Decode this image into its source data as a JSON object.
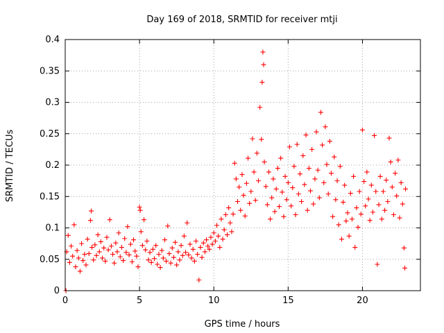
{
  "chart_data": {
    "type": "scatter",
    "title": "Day 169 of 2018, SRMTID for receiver mtji",
    "xlabel": "GPS time / hours",
    "ylabel": "SRMTID / TECUs",
    "xlim": [
      0,
      23.9
    ],
    "ylim": [
      0,
      0.4
    ],
    "x_ticks": [
      0,
      5,
      10,
      15,
      20
    ],
    "x_tick_labels": [
      "0",
      "5",
      "10",
      "15",
      "20"
    ],
    "y_ticks": [
      0,
      0.05,
      0.1,
      0.15,
      0.2,
      0.25,
      0.3,
      0.35,
      0.4
    ],
    "y_tick_labels": [
      "0",
      "0.05",
      "0.1",
      "0.15",
      "0.2",
      "0.25",
      "0.3",
      "0.35",
      "0.4"
    ],
    "grid": true,
    "marker": "+",
    "color": "#ff0000",
    "series": [
      {
        "name": "SRMTID",
        "points": [
          [
            0.05,
            0.0
          ],
          [
            0.1,
            0.062
          ],
          [
            0.2,
            0.088
          ],
          [
            0.3,
            0.045
          ],
          [
            0.4,
            0.071
          ],
          [
            0.5,
            0.055
          ],
          [
            0.6,
            0.105
          ],
          [
            0.7,
            0.038
          ],
          [
            0.8,
            0.064
          ],
          [
            0.9,
            0.052
          ],
          [
            1.0,
            0.031
          ],
          [
            1.1,
            0.075
          ],
          [
            1.2,
            0.048
          ],
          [
            1.3,
            0.058
          ],
          [
            1.4,
            0.041
          ],
          [
            1.5,
            0.082
          ],
          [
            1.6,
            0.059
          ],
          [
            1.7,
            0.112
          ],
          [
            1.75,
            0.127
          ],
          [
            1.8,
            0.069
          ],
          [
            1.9,
            0.049
          ],
          [
            2.0,
            0.073
          ],
          [
            2.1,
            0.056
          ],
          [
            2.2,
            0.089
          ],
          [
            2.3,
            0.062
          ],
          [
            2.4,
            0.078
          ],
          [
            2.5,
            0.052
          ],
          [
            2.6,
            0.068
          ],
          [
            2.7,
            0.047
          ],
          [
            2.8,
            0.085
          ],
          [
            2.9,
            0.065
          ],
          [
            3.0,
            0.113
          ],
          [
            3.1,
            0.071
          ],
          [
            3.2,
            0.058
          ],
          [
            3.3,
            0.044
          ],
          [
            3.4,
            0.076
          ],
          [
            3.5,
            0.062
          ],
          [
            3.6,
            0.092
          ],
          [
            3.7,
            0.054
          ],
          [
            3.8,
            0.069
          ],
          [
            3.9,
            0.048
          ],
          [
            4.0,
            0.083
          ],
          [
            4.1,
            0.061
          ],
          [
            4.2,
            0.102
          ],
          [
            4.3,
            0.057
          ],
          [
            4.4,
            0.074
          ],
          [
            4.5,
            0.046
          ],
          [
            4.6,
            0.081
          ],
          [
            4.7,
            0.063
          ],
          [
            4.8,
            0.055
          ],
          [
            4.9,
            0.038
          ],
          [
            5.0,
            0.133
          ],
          [
            5.05,
            0.128
          ],
          [
            5.1,
            0.094
          ],
          [
            5.2,
            0.072
          ],
          [
            5.3,
            0.113
          ],
          [
            5.4,
            0.065
          ],
          [
            5.5,
            0.079
          ],
          [
            5.6,
            0.049
          ],
          [
            5.7,
            0.061
          ],
          [
            5.8,
            0.045
          ],
          [
            5.9,
            0.066
          ],
          [
            6.0,
            0.051
          ],
          [
            6.1,
            0.072
          ],
          [
            6.2,
            0.042
          ],
          [
            6.3,
            0.058
          ],
          [
            6.4,
            0.037
          ],
          [
            6.5,
            0.064
          ],
          [
            6.6,
            0.052
          ],
          [
            6.7,
            0.081
          ],
          [
            6.8,
            0.047
          ],
          [
            6.9,
            0.103
          ],
          [
            7.0,
            0.059
          ],
          [
            7.1,
            0.044
          ],
          [
            7.2,
            0.068
          ],
          [
            7.3,
            0.053
          ],
          [
            7.4,
            0.077
          ],
          [
            7.5,
            0.041
          ],
          [
            7.6,
            0.062
          ],
          [
            7.7,
            0.049
          ],
          [
            7.8,
            0.072
          ],
          [
            7.9,
            0.056
          ],
          [
            8.0,
            0.087
          ],
          [
            8.1,
            0.061
          ],
          [
            8.2,
            0.108
          ],
          [
            8.3,
            0.057
          ],
          [
            8.4,
            0.074
          ],
          [
            8.5,
            0.052
          ],
          [
            8.6,
            0.066
          ],
          [
            8.7,
            0.047
          ],
          [
            8.8,
            0.079
          ],
          [
            8.9,
            0.058
          ],
          [
            9.0,
            0.017
          ],
          [
            9.1,
            0.069
          ],
          [
            9.2,
            0.053
          ],
          [
            9.3,
            0.076
          ],
          [
            9.4,
            0.062
          ],
          [
            9.5,
            0.081
          ],
          [
            9.6,
            0.071
          ],
          [
            9.7,
            0.066
          ],
          [
            9.8,
            0.085
          ],
          [
            9.9,
            0.074
          ],
          [
            10.0,
            0.092
          ],
          [
            10.1,
            0.079
          ],
          [
            10.2,
            0.104
          ],
          [
            10.3,
            0.087
          ],
          [
            10.4,
            0.069
          ],
          [
            10.5,
            0.114
          ],
          [
            10.6,
            0.082
          ],
          [
            10.7,
            0.097
          ],
          [
            10.8,
            0.121
          ],
          [
            10.9,
            0.089
          ],
          [
            11.0,
            0.132
          ],
          [
            11.1,
            0.108
          ],
          [
            11.2,
            0.094
          ],
          [
            11.3,
            0.122
          ],
          [
            11.4,
            0.203
          ],
          [
            11.5,
            0.178
          ],
          [
            11.6,
            0.142
          ],
          [
            11.7,
            0.165
          ],
          [
            11.8,
            0.128
          ],
          [
            11.9,
            0.185
          ],
          [
            12.0,
            0.152
          ],
          [
            12.1,
            0.119
          ],
          [
            12.2,
            0.171
          ],
          [
            12.3,
            0.211
          ],
          [
            12.4,
            0.139
          ],
          [
            12.5,
            0.158
          ],
          [
            12.6,
            0.242
          ],
          [
            12.7,
            0.189
          ],
          [
            12.8,
            0.144
          ],
          [
            12.9,
            0.219
          ],
          [
            13.0,
            0.175
          ],
          [
            13.1,
            0.292
          ],
          [
            13.2,
            0.241
          ],
          [
            13.25,
            0.332
          ],
          [
            13.3,
            0.38
          ],
          [
            13.35,
            0.36
          ],
          [
            13.4,
            0.205
          ],
          [
            13.5,
            0.166
          ],
          [
            13.6,
            0.137
          ],
          [
            13.7,
            0.189
          ],
          [
            13.8,
            0.114
          ],
          [
            13.9,
            0.148
          ],
          [
            14.0,
            0.178
          ],
          [
            14.1,
            0.126
          ],
          [
            14.2,
            0.162
          ],
          [
            14.3,
            0.195
          ],
          [
            14.4,
            0.134
          ],
          [
            14.5,
            0.211
          ],
          [
            14.6,
            0.157
          ],
          [
            14.7,
            0.118
          ],
          [
            14.8,
            0.182
          ],
          [
            14.9,
            0.145
          ],
          [
            15.0,
            0.172
          ],
          [
            15.1,
            0.229
          ],
          [
            15.2,
            0.135
          ],
          [
            15.3,
            0.164
          ],
          [
            15.4,
            0.198
          ],
          [
            15.5,
            0.121
          ],
          [
            15.6,
            0.233
          ],
          [
            15.7,
            0.154
          ],
          [
            15.8,
            0.186
          ],
          [
            15.9,
            0.142
          ],
          [
            16.0,
            0.215
          ],
          [
            16.1,
            0.169
          ],
          [
            16.2,
            0.248
          ],
          [
            16.3,
            0.128
          ],
          [
            16.4,
            0.195
          ],
          [
            16.5,
            0.159
          ],
          [
            16.6,
            0.225
          ],
          [
            16.7,
            0.138
          ],
          [
            16.8,
            0.178
          ],
          [
            16.9,
            0.253
          ],
          [
            17.0,
            0.192
          ],
          [
            17.1,
            0.148
          ],
          [
            17.2,
            0.284
          ],
          [
            17.3,
            0.232
          ],
          [
            17.4,
            0.172
          ],
          [
            17.5,
            0.261
          ],
          [
            17.6,
            0.201
          ],
          [
            17.7,
            0.154
          ],
          [
            17.8,
            0.238
          ],
          [
            17.9,
            0.187
          ],
          [
            18.0,
            0.118
          ],
          [
            18.1,
            0.213
          ],
          [
            18.2,
            0.145
          ],
          [
            18.3,
            0.175
          ],
          [
            18.4,
            0.105
          ],
          [
            18.5,
            0.198
          ],
          [
            18.6,
            0.082
          ],
          [
            18.7,
            0.141
          ],
          [
            18.8,
            0.168
          ],
          [
            18.9,
            0.111
          ],
          [
            19.0,
            0.124
          ],
          [
            19.1,
            0.087
          ],
          [
            19.2,
            0.155
          ],
          [
            19.3,
            0.114
          ],
          [
            19.4,
            0.182
          ],
          [
            19.5,
            0.069
          ],
          [
            19.6,
            0.132
          ],
          [
            19.7,
            0.101
          ],
          [
            19.8,
            0.158
          ],
          [
            19.9,
            0.122
          ],
          [
            20.0,
            0.256
          ],
          [
            20.1,
            0.174
          ],
          [
            20.2,
            0.135
          ],
          [
            20.3,
            0.189
          ],
          [
            20.4,
            0.146
          ],
          [
            20.5,
            0.112
          ],
          [
            20.6,
            0.168
          ],
          [
            20.7,
            0.125
          ],
          [
            20.8,
            0.247
          ],
          [
            20.9,
            0.158
          ],
          [
            21.0,
            0.042
          ],
          [
            21.1,
            0.137
          ],
          [
            21.2,
            0.182
          ],
          [
            21.3,
            0.114
          ],
          [
            21.4,
            0.158
          ],
          [
            21.5,
            0.128
          ],
          [
            21.6,
            0.176
          ],
          [
            21.7,
            0.142
          ],
          [
            21.8,
            0.243
          ],
          [
            21.9,
            0.205
          ],
          [
            22.0,
            0.165
          ],
          [
            22.1,
            0.121
          ],
          [
            22.2,
            0.187
          ],
          [
            22.3,
            0.151
          ],
          [
            22.4,
            0.208
          ],
          [
            22.5,
            0.116
          ],
          [
            22.6,
            0.172
          ],
          [
            22.7,
            0.138
          ],
          [
            22.8,
            0.068
          ],
          [
            22.85,
            0.036
          ],
          [
            22.9,
            0.162
          ]
        ]
      }
    ]
  }
}
